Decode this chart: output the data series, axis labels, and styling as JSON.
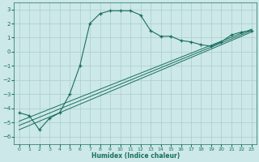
{
  "xlabel": "Humidex (Indice chaleur)",
  "ylabel": "",
  "bg_color": "#cce8e8",
  "grid_color": "#aacece",
  "line_color": "#1a6e60",
  "xlim": [
    -0.5,
    23.5
  ],
  "ylim": [
    -6.5,
    3.5
  ],
  "yticks": [
    -6,
    -5,
    -4,
    -3,
    -2,
    -1,
    0,
    1,
    2,
    3
  ],
  "xticks": [
    0,
    1,
    2,
    3,
    4,
    5,
    6,
    7,
    8,
    9,
    10,
    11,
    12,
    13,
    14,
    15,
    16,
    17,
    18,
    19,
    20,
    21,
    22,
    23
  ],
  "curve_x": [
    0,
    1,
    2,
    3,
    4,
    5,
    6,
    7,
    8,
    9,
    10,
    11,
    12,
    13,
    14,
    15,
    16,
    17,
    18,
    19,
    20,
    21,
    22,
    23
  ],
  "curve_y": [
    -4.3,
    -4.5,
    -5.5,
    -4.7,
    -4.3,
    -3.0,
    -1.0,
    2.0,
    2.7,
    2.9,
    2.9,
    2.9,
    2.6,
    1.5,
    1.1,
    1.1,
    0.8,
    0.7,
    0.5,
    0.4,
    0.7,
    1.2,
    1.4,
    1.5
  ],
  "line1_x": [
    0,
    23
  ],
  "line1_y": [
    -5.5,
    1.4
  ],
  "line2_x": [
    0,
    23
  ],
  "line2_y": [
    -5.2,
    1.5
  ],
  "line3_x": [
    0,
    23
  ],
  "line3_y": [
    -4.9,
    1.6
  ]
}
